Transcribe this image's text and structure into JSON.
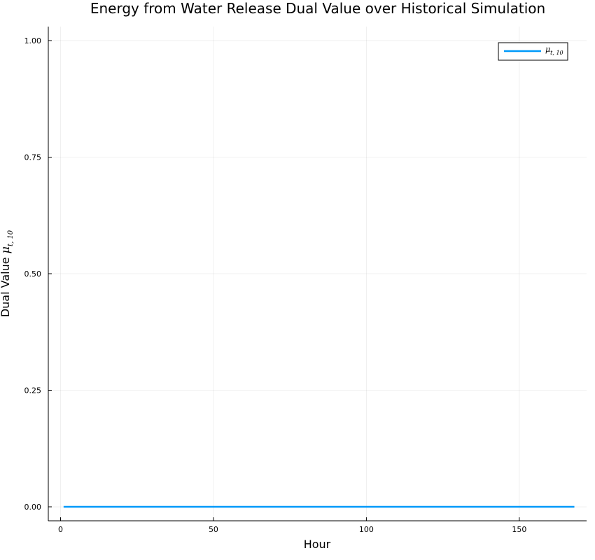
{
  "chart_data": {
    "type": "line",
    "title": "Energy from Water Release Dual Value over Historical Simulation",
    "xlabel": "Hour",
    "ylabel_prefix": "Dual Value ",
    "ylabel_symbol": "μ",
    "ylabel_subscript": "t, 10",
    "xlim": [
      -4,
      172
    ],
    "ylim": [
      -0.03,
      1.03
    ],
    "x_ticks": [
      0,
      50,
      100,
      150
    ],
    "x_tick_labels": [
      "0",
      "50",
      "100",
      "150"
    ],
    "y_ticks": [
      0,
      0.25,
      0.5,
      0.75,
      1.0
    ],
    "y_tick_labels": [
      "0.00",
      "0.25",
      "0.50",
      "0.75",
      "1.00"
    ],
    "grid": true,
    "legend_position": "top-right",
    "series": [
      {
        "name_symbol": "μ",
        "name_subscript": "t, 10",
        "color": "#009AFA",
        "x": [
          1,
          168
        ],
        "y": [
          0,
          0
        ]
      }
    ]
  }
}
